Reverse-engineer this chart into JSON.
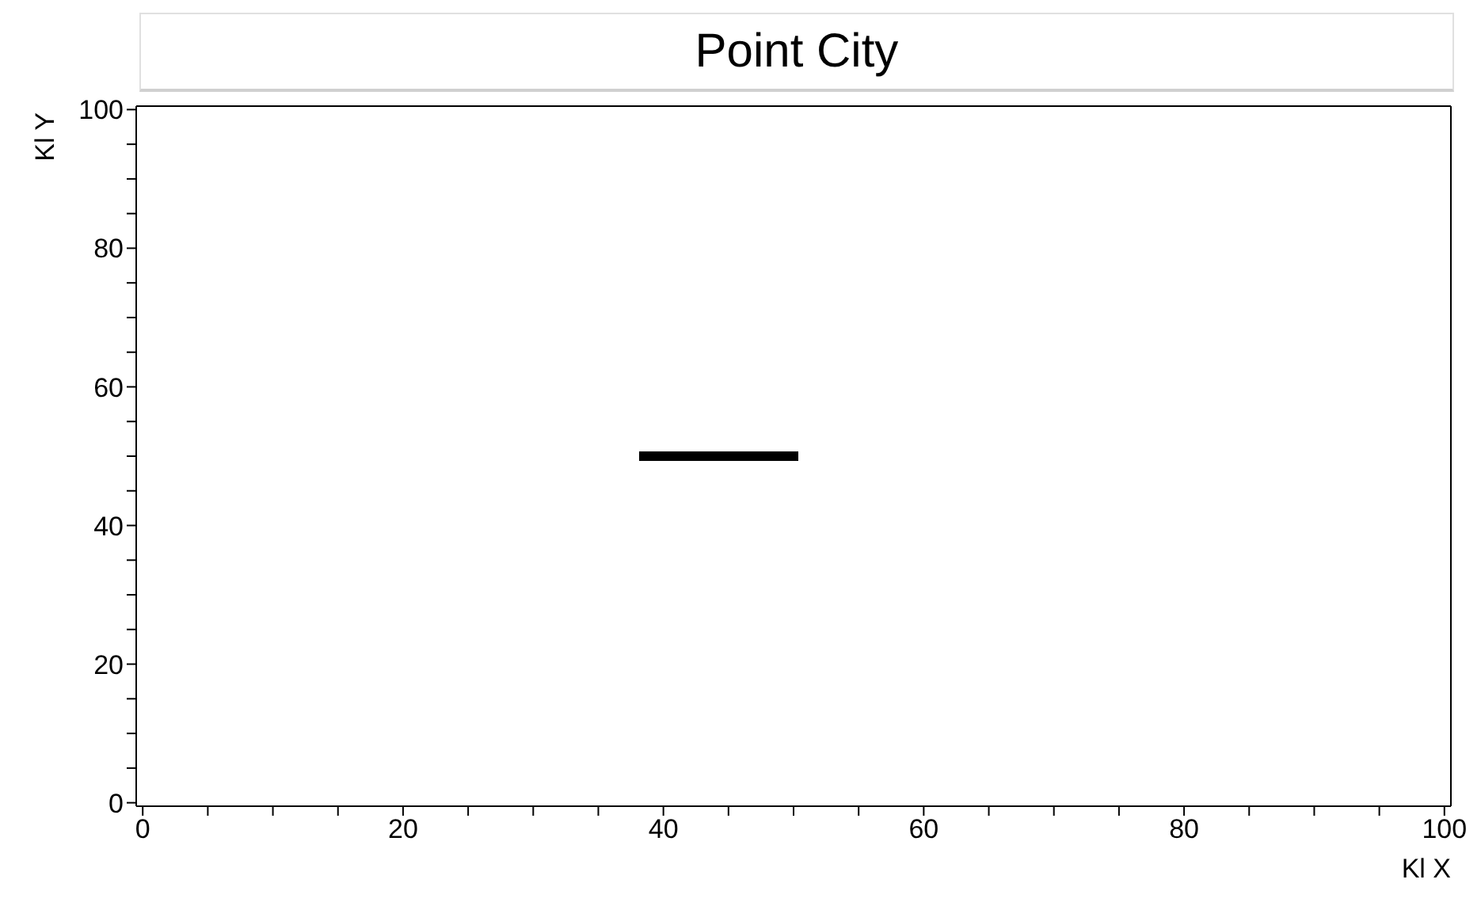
{
  "chart_data": {
    "type": "scatter",
    "title": "Point City",
    "xlabel": "Kl X",
    "ylabel": "Kl Y",
    "x": [
      38.5,
      39,
      39.5,
      40,
      40.5,
      41,
      41.5,
      42,
      42.5,
      43,
      43.5,
      44,
      44.5,
      45,
      45.5,
      46,
      46.5,
      47,
      47.5,
      48,
      48.5,
      49,
      49.5,
      50
    ],
    "series": [
      {
        "color": "#000000",
        "values": [
          50,
          50,
          50,
          50,
          50,
          50,
          50,
          50,
          50,
          50,
          50,
          50,
          50,
          50,
          50,
          50,
          50,
          50,
          50,
          50,
          50,
          50,
          50,
          50
        ]
      }
    ],
    "xlim": [
      -0.5,
      100.5
    ],
    "ylim": [
      -0.5,
      100.5
    ],
    "xticks": [
      0,
      {
        "value": 5,
        "label": null
      },
      {
        "value": 10,
        "label": null
      },
      {
        "value": 15,
        "label": null
      },
      20,
      {
        "value": 25,
        "label": null
      },
      {
        "value": 30,
        "label": null
      },
      {
        "value": 35,
        "label": null
      },
      40,
      {
        "value": 45,
        "label": null
      },
      {
        "value": 50,
        "label": null
      },
      {
        "value": 55,
        "label": null
      },
      60,
      {
        "value": 65,
        "label": null
      },
      {
        "value": 70,
        "label": null
      },
      {
        "value": 75,
        "label": null
      },
      80,
      {
        "value": 85,
        "label": null
      },
      {
        "value": 90,
        "label": null
      },
      {
        "value": 95,
        "label": null
      },
      100
    ],
    "yticks": [
      0,
      {
        "value": 5,
        "label": null
      },
      {
        "value": 10,
        "label": null
      },
      {
        "value": 15,
        "label": null
      },
      20,
      {
        "value": 25,
        "label": null
      },
      {
        "value": 30,
        "label": null
      },
      {
        "value": 35,
        "label": null
      },
      40,
      {
        "value": 45,
        "label": null
      },
      {
        "value": 50,
        "label": null
      },
      {
        "value": 55,
        "label": null
      },
      60,
      {
        "value": 65,
        "label": null
      },
      {
        "value": 70,
        "label": null
      },
      {
        "value": 75,
        "label": null
      },
      80,
      {
        "value": 85,
        "label": null
      },
      {
        "value": 90,
        "label": null
      },
      {
        "value": 95,
        "label": null
      },
      100
    ],
    "grid": false,
    "marker": "square",
    "legend": false
  }
}
